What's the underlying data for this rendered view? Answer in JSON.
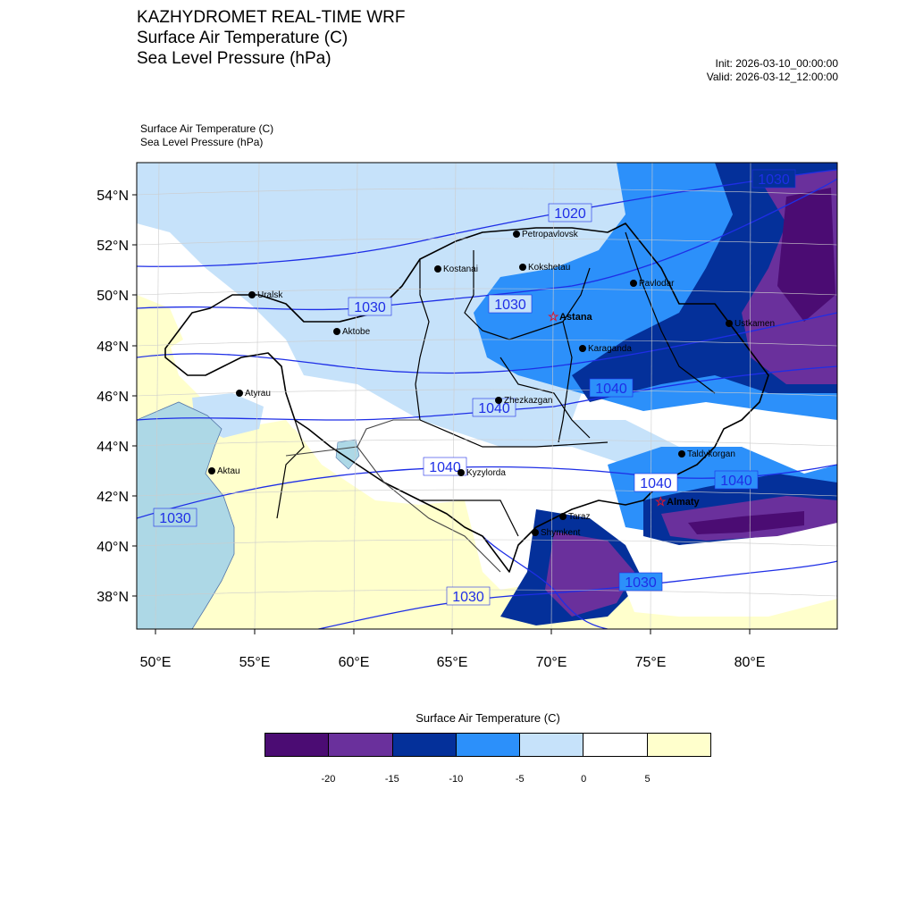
{
  "header": {
    "title_lines": [
      "KAZHYDROMET REAL-TIME WRF",
      "Surface Air Temperature  (C)",
      "Sea Level Pressure  (hPa)"
    ],
    "init": "Init: 2026-03-10_00:00:00",
    "valid": "Valid: 2026-03-12_12:00:00"
  },
  "map": {
    "sub_labels": [
      "Surface Air Temperature   (C)",
      "Sea Level Pressure   (hPa)"
    ],
    "lat_labels": [
      "54°N",
      "52°N",
      "50°N",
      "48°N",
      "46°N",
      "44°N",
      "42°N",
      "40°N",
      "38°N"
    ],
    "lon_labels": [
      "50°E",
      "55°E",
      "60°E",
      "65°E",
      "70°E",
      "75°E",
      "80°E"
    ],
    "capitals": [
      "Astana",
      "Almaty"
    ],
    "cities": [
      "Petropavlovsk",
      "Kostanai",
      "Kokshetau",
      "Pavlodar",
      "Uralsk",
      "Aktobe",
      "Ustkamen",
      "Karaganda",
      "Atyrau",
      "Zhezkazgan",
      "Taldykorgan",
      "Aktau",
      "Kyzylorda",
      "Taraz",
      "Shymkent"
    ],
    "isobar_labels": [
      "1020",
      "1030",
      "1030",
      "1030",
      "1040",
      "1040",
      "1040",
      "1040",
      "1040",
      "1030",
      "1030",
      "1030"
    ],
    "colors": {
      "ocean": "#add8e6",
      "isobar": "#1e2ee6",
      "capital_star": "#e0162b"
    }
  },
  "colorbar": {
    "title": "Surface Air Temperature (C)",
    "colors": [
      "#4b0c73",
      "#6a309c",
      "#04309a",
      "#2c90fa",
      "#c6e2fa",
      "#ffffff",
      "#ffffcc"
    ],
    "ticks": [
      "-20",
      "-15",
      "-10",
      "-5",
      "0",
      "5"
    ]
  }
}
